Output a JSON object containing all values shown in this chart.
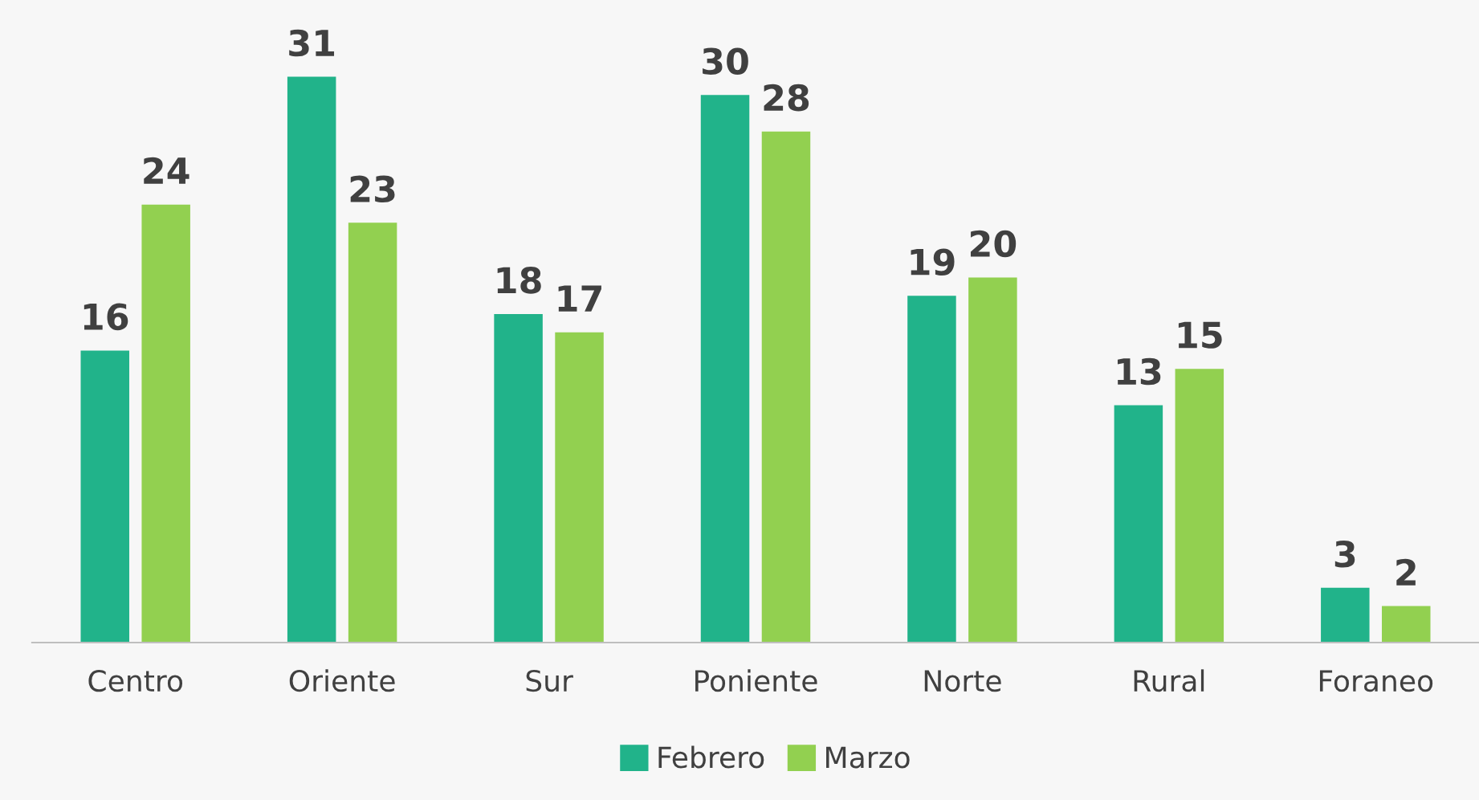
{
  "chart_data": {
    "type": "bar",
    "data_labels": true,
    "legend": "bottom",
    "grid": false,
    "categories": [
      "Centro",
      "Oriente",
      "Sur",
      "Poniente",
      "Norte",
      "Rural",
      "Foraneo"
    ],
    "series": [
      {
        "name": "Febrero",
        "color": "#21b38a",
        "values": [
          16,
          31,
          18,
          30,
          19,
          13,
          3
        ]
      },
      {
        "name": "Marzo",
        "color": "#92d050",
        "values": [
          24,
          23,
          17,
          28,
          20,
          15,
          2
        ]
      }
    ]
  }
}
